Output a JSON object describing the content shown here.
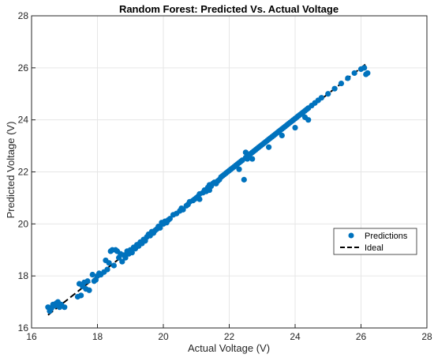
{
  "colors": {
    "predictions": "#0072BD",
    "ideal": "#000000"
  },
  "chart_data": {
    "type": "scatter",
    "title": "Random Forest: Predicted Vs. Actual Voltage",
    "xlabel": "Actual Voltage (V)",
    "ylabel": "Predicted Voltage (V)",
    "xlim": [
      16,
      28
    ],
    "ylim": [
      16,
      28
    ],
    "xticks": [
      "16",
      "18",
      "20",
      "22",
      "24",
      "26",
      "28"
    ],
    "yticks": [
      "16",
      "18",
      "20",
      "22",
      "24",
      "26",
      "28"
    ],
    "grid": true,
    "legend_position": "right",
    "series": [
      {
        "name": "Predictions",
        "kind": "scatter",
        "points": [
          [
            16.5,
            16.8
          ],
          [
            16.55,
            16.65
          ],
          [
            16.6,
            16.75
          ],
          [
            16.65,
            16.9
          ],
          [
            16.7,
            16.85
          ],
          [
            16.75,
            16.95
          ],
          [
            16.8,
            17.0
          ],
          [
            16.85,
            16.8
          ],
          [
            16.9,
            16.9
          ],
          [
            17.0,
            16.8
          ],
          [
            17.4,
            17.2
          ],
          [
            17.45,
            17.7
          ],
          [
            17.5,
            17.25
          ],
          [
            17.55,
            17.6
          ],
          [
            17.6,
            17.75
          ],
          [
            17.65,
            17.5
          ],
          [
            17.7,
            17.8
          ],
          [
            17.75,
            17.45
          ],
          [
            17.85,
            18.05
          ],
          [
            17.9,
            17.8
          ],
          [
            17.95,
            17.85
          ],
          [
            18.0,
            18.0
          ],
          [
            18.05,
            18.1
          ],
          [
            18.1,
            18.05
          ],
          [
            18.2,
            18.15
          ],
          [
            18.25,
            18.6
          ],
          [
            18.3,
            18.25
          ],
          [
            18.35,
            18.5
          ],
          [
            18.4,
            18.95
          ],
          [
            18.45,
            19.0
          ],
          [
            18.5,
            18.4
          ],
          [
            18.55,
            19.0
          ],
          [
            18.6,
            18.95
          ],
          [
            18.65,
            18.7
          ],
          [
            18.7,
            18.85
          ],
          [
            18.75,
            18.55
          ],
          [
            18.8,
            18.8
          ],
          [
            18.85,
            18.7
          ],
          [
            18.9,
            18.95
          ],
          [
            18.95,
            18.85
          ],
          [
            19.0,
            19.0
          ],
          [
            19.05,
            18.9
          ],
          [
            19.1,
            19.1
          ],
          [
            19.15,
            19.05
          ],
          [
            19.2,
            19.2
          ],
          [
            19.25,
            19.15
          ],
          [
            19.3,
            19.3
          ],
          [
            19.35,
            19.25
          ],
          [
            19.4,
            19.4
          ],
          [
            19.45,
            19.35
          ],
          [
            19.5,
            19.5
          ],
          [
            19.55,
            19.6
          ],
          [
            19.6,
            19.55
          ],
          [
            19.65,
            19.7
          ],
          [
            19.7,
            19.65
          ],
          [
            19.75,
            19.75
          ],
          [
            19.8,
            19.8
          ],
          [
            19.85,
            19.9
          ],
          [
            19.9,
            19.85
          ],
          [
            19.95,
            20.05
          ],
          [
            20.0,
            20.0
          ],
          [
            20.05,
            20.1
          ],
          [
            20.1,
            20.05
          ],
          [
            20.15,
            20.15
          ],
          [
            20.2,
            20.2
          ],
          [
            20.3,
            20.35
          ],
          [
            20.4,
            20.4
          ],
          [
            20.5,
            20.5
          ],
          [
            20.55,
            20.6
          ],
          [
            20.6,
            20.55
          ],
          [
            20.7,
            20.7
          ],
          [
            20.75,
            20.75
          ],
          [
            20.8,
            20.85
          ],
          [
            20.9,
            20.9
          ],
          [
            20.95,
            20.95
          ],
          [
            21.0,
            21.0
          ],
          [
            21.05,
            21.05
          ],
          [
            21.1,
            21.15
          ],
          [
            21.2,
            21.2
          ],
          [
            21.25,
            21.3
          ],
          [
            21.3,
            21.25
          ],
          [
            21.35,
            21.4
          ],
          [
            21.4,
            21.5
          ],
          [
            21.45,
            21.45
          ],
          [
            21.5,
            21.55
          ],
          [
            21.55,
            21.6
          ],
          [
            21.6,
            21.55
          ],
          [
            21.65,
            21.65
          ],
          [
            21.7,
            21.7
          ],
          [
            21.75,
            21.8
          ],
          [
            21.8,
            21.85
          ],
          [
            21.85,
            21.9
          ],
          [
            21.9,
            21.95
          ],
          [
            21.95,
            22.0
          ],
          [
            22.0,
            22.05
          ],
          [
            22.05,
            22.1
          ],
          [
            22.1,
            22.15
          ],
          [
            22.15,
            22.2
          ],
          [
            22.2,
            22.25
          ],
          [
            22.25,
            22.3
          ],
          [
            22.3,
            22.35
          ],
          [
            22.35,
            22.4
          ],
          [
            22.4,
            22.45
          ],
          [
            22.45,
            21.7
          ],
          [
            22.5,
            22.55
          ],
          [
            22.55,
            22.5
          ],
          [
            22.6,
            22.65
          ],
          [
            22.65,
            22.7
          ],
          [
            22.7,
            22.75
          ],
          [
            22.75,
            22.8
          ],
          [
            22.8,
            22.85
          ],
          [
            22.85,
            22.9
          ],
          [
            22.9,
            22.95
          ],
          [
            22.95,
            23.0
          ],
          [
            23.0,
            23.05
          ],
          [
            23.05,
            23.1
          ],
          [
            23.1,
            23.15
          ],
          [
            23.15,
            23.2
          ],
          [
            23.2,
            23.25
          ],
          [
            23.25,
            23.3
          ],
          [
            23.3,
            23.35
          ],
          [
            23.35,
            23.4
          ],
          [
            23.4,
            23.45
          ],
          [
            23.45,
            23.5
          ],
          [
            23.5,
            23.55
          ],
          [
            23.55,
            23.6
          ],
          [
            23.6,
            23.65
          ],
          [
            23.65,
            23.7
          ],
          [
            23.7,
            23.75
          ],
          [
            23.75,
            23.8
          ],
          [
            23.8,
            23.85
          ],
          [
            23.85,
            23.9
          ],
          [
            23.9,
            23.95
          ],
          [
            23.95,
            24.0
          ],
          [
            24.0,
            24.05
          ],
          [
            24.05,
            24.1
          ],
          [
            24.1,
            24.15
          ],
          [
            24.15,
            24.2
          ],
          [
            24.2,
            24.25
          ],
          [
            24.25,
            24.3
          ],
          [
            24.3,
            24.35
          ],
          [
            24.35,
            24.4
          ],
          [
            24.4,
            24.45
          ],
          [
            24.5,
            24.55
          ],
          [
            24.6,
            24.65
          ],
          [
            24.7,
            24.75
          ],
          [
            24.8,
            24.85
          ],
          [
            25.0,
            25.0
          ],
          [
            25.2,
            25.2
          ],
          [
            25.4,
            25.4
          ],
          [
            25.6,
            25.6
          ],
          [
            25.8,
            25.8
          ],
          [
            26.0,
            25.95
          ],
          [
            26.1,
            26.0
          ],
          [
            26.2,
            25.8
          ],
          [
            26.15,
            25.75
          ],
          [
            21.1,
            20.95
          ],
          [
            21.4,
            21.3
          ],
          [
            22.3,
            22.1
          ],
          [
            23.2,
            22.95
          ],
          [
            23.6,
            23.4
          ],
          [
            24.3,
            24.1
          ],
          [
            24.0,
            23.7
          ],
          [
            24.4,
            24.0
          ],
          [
            22.5,
            22.75
          ],
          [
            22.7,
            22.5
          ]
        ]
      },
      {
        "name": "Ideal",
        "kind": "line",
        "dashed": true,
        "x": [
          16.5,
          26.2
        ],
        "y": [
          16.5,
          26.2
        ]
      }
    ]
  }
}
